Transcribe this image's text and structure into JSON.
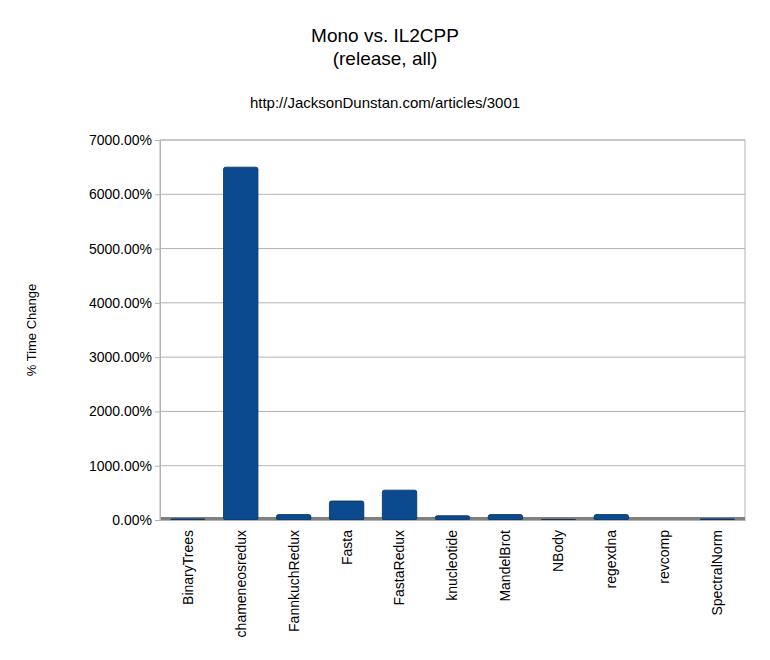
{
  "chart_data": {
    "type": "bar",
    "title": "Mono vs. IL2CPP",
    "subtitle": "(release, all)",
    "annotations": [
      "http://JacksonDunstan.com/articles/3001"
    ],
    "y_label": "% Time Change",
    "categories": [
      "BinaryTrees",
      "chameneosredux",
      "FannkuchRedux",
      "Fasta",
      "FastaRedux",
      "knucleotide",
      "MandelBrot",
      "NBody",
      "regexdna",
      "revcomp",
      "SpectralNorm"
    ],
    "values": [
      20,
      6500,
      100,
      350,
      550,
      80,
      100,
      10,
      100,
      0,
      20
    ],
    "color": "#0b4a8e",
    "ylim": [
      0,
      7000
    ],
    "yticks": [
      {
        "value": 0,
        "label": "0.00%"
      },
      {
        "value": 1000,
        "label": "1000.00%"
      },
      {
        "value": 2000,
        "label": "2000.00%"
      },
      {
        "value": 3000,
        "label": "3000.00%"
      },
      {
        "value": 4000,
        "label": "4000.00%"
      },
      {
        "value": 5000,
        "label": "5000.00%"
      },
      {
        "value": 6000,
        "label": "6000.00%"
      },
      {
        "value": 7000,
        "label": "7000.00%"
      }
    ],
    "grid": true
  }
}
